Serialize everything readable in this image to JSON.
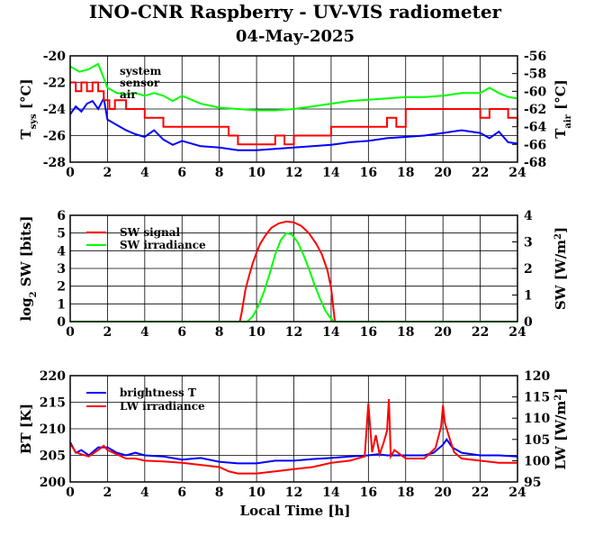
{
  "title": "INO-CNR Raspberry - UV-VIS radiometer",
  "subtitle": "04-May-2025",
  "xlabel": "Local Time [h]",
  "chart_data": [
    {
      "type": "line",
      "panel": "temperature",
      "ylabel_left": {
        "main": "T",
        "sub": "sys",
        "unit": " [°C]"
      },
      "ylabel_right": {
        "main": "T",
        "sub": "air",
        "unit": " [°C]"
      },
      "xlim": [
        0,
        24
      ],
      "ylim": [
        -28,
        -20
      ],
      "ylim_right": [
        -68,
        -56
      ],
      "xticks": [
        0,
        2,
        4,
        6,
        8,
        10,
        12,
        14,
        16,
        18,
        20,
        22,
        24
      ],
      "yticks": [
        -28,
        -26,
        -24,
        -22,
        -20
      ],
      "yticks_right": [
        -68,
        -66,
        -64,
        -62,
        -60,
        -58,
        -56
      ],
      "grid": true,
      "legend_position": "top-left",
      "series": [
        {
          "name": "system",
          "color": "#0000ff",
          "axis": "left",
          "x": [
            0,
            0.3,
            0.6,
            0.9,
            1.2,
            1.5,
            1.8,
            2.0,
            2.5,
            3.0,
            3.5,
            4.0,
            4.5,
            5.0,
            5.5,
            6.0,
            7.0,
            8.0,
            9.0,
            10.0,
            11.0,
            12.0,
            13.0,
            14.0,
            15.0,
            16.0,
            17.0,
            18.0,
            19.0,
            20.0,
            21.0,
            22.0,
            22.5,
            23.0,
            23.5,
            24.0
          ],
          "y": [
            -24.4,
            -23.8,
            -24.2,
            -23.6,
            -23.4,
            -24.0,
            -23.2,
            -24.8,
            -25.2,
            -25.6,
            -25.9,
            -26.1,
            -25.6,
            -26.3,
            -26.7,
            -26.4,
            -26.8,
            -26.9,
            -27.1,
            -27.1,
            -27.0,
            -26.9,
            -26.8,
            -26.7,
            -26.5,
            -26.4,
            -26.2,
            -26.1,
            -26.0,
            -25.8,
            -25.6,
            -25.8,
            -26.2,
            -25.7,
            -26.5,
            -26.6
          ]
        },
        {
          "name": "sensor",
          "color": "#00ff00",
          "axis": "left",
          "x": [
            0,
            0.5,
            1.0,
            1.5,
            2.0,
            2.5,
            3.0,
            3.5,
            4.0,
            4.5,
            5.0,
            5.5,
            6.0,
            7.0,
            8.0,
            9.0,
            10.0,
            11.0,
            12.0,
            13.0,
            14.0,
            15.0,
            16.0,
            17.0,
            18.0,
            19.0,
            20.0,
            21.0,
            22.0,
            22.5,
            23.0,
            23.5,
            24.0
          ],
          "y": [
            -20.8,
            -21.2,
            -21.0,
            -20.6,
            -22.4,
            -22.8,
            -22.9,
            -22.8,
            -23.0,
            -22.8,
            -23.0,
            -23.4,
            -23.0,
            -23.6,
            -23.9,
            -24.0,
            -24.1,
            -24.1,
            -24.0,
            -23.8,
            -23.6,
            -23.4,
            -23.3,
            -23.2,
            -23.1,
            -23.1,
            -23.0,
            -22.8,
            -22.8,
            -22.4,
            -22.8,
            -23.1,
            -23.2
          ]
        },
        {
          "name": "air",
          "color": "#ff0000",
          "axis": "right",
          "step": 1,
          "x": [
            0,
            0.3,
            0.6,
            0.9,
            1.2,
            1.5,
            1.8,
            2.1,
            2.4,
            3.0,
            3.5,
            4.0,
            4.5,
            5.0,
            5.5,
            6.0,
            7.0,
            8.0,
            8.5,
            9.0,
            10.0,
            11.0,
            11.5,
            12.0,
            13.0,
            14.0,
            15.0,
            16.0,
            17.0,
            17.5,
            18.0,
            19.0,
            20.0,
            21.0,
            22.0,
            22.5,
            23.0,
            23.5,
            24.0
          ],
          "y": [
            -59,
            -60,
            -59,
            -60,
            -59,
            -60,
            -61,
            -62,
            -61,
            -62,
            -62,
            -63,
            -63,
            -64,
            -64,
            -64,
            -64,
            -64,
            -65,
            -66,
            -66,
            -65,
            -66,
            -65,
            -65,
            -64,
            -64,
            -64,
            -63,
            -64,
            -62,
            -62,
            -62,
            -62,
            -63,
            -62,
            -62,
            -63,
            -64
          ]
        }
      ]
    },
    {
      "type": "line",
      "panel": "shortwave",
      "ylabel_left": {
        "main": "log",
        "sub": "2",
        "unit": " SW [bits]"
      },
      "ylabel_right": {
        "main": "SW [W/m",
        "sup": "2",
        "unit": "]"
      },
      "xlim": [
        0,
        24
      ],
      "ylim": [
        0,
        6
      ],
      "ylim_right": [
        0,
        4
      ],
      "xticks": [
        0,
        2,
        4,
        6,
        8,
        10,
        12,
        14,
        16,
        18,
        20,
        22,
        24
      ],
      "yticks": [
        0,
        1,
        2,
        3,
        4,
        5,
        6
      ],
      "yticks_right": [
        0,
        1,
        2,
        3,
        4
      ],
      "grid": true,
      "legend_position": "top-left",
      "series": [
        {
          "name": "SW signal",
          "color": "#ff0000",
          "axis": "left",
          "x": [
            0,
            9.1,
            9.2,
            9.4,
            9.6,
            9.8,
            10.0,
            10.2,
            10.5,
            10.8,
            11.2,
            11.6,
            12.0,
            12.4,
            12.8,
            13.2,
            13.5,
            13.8,
            14.0,
            14.15,
            14.2,
            24
          ],
          "y": [
            0,
            0,
            0.5,
            1.8,
            2.6,
            3.3,
            3.9,
            4.4,
            4.9,
            5.3,
            5.55,
            5.65,
            5.6,
            5.4,
            5.0,
            4.4,
            3.8,
            2.9,
            1.9,
            0.5,
            0,
            0
          ]
        },
        {
          "name": "SW irradiance",
          "color": "#00ff00",
          "axis": "left",
          "x": [
            0,
            9.5,
            9.8,
            10.1,
            10.4,
            10.7,
            11.0,
            11.3,
            11.6,
            11.9,
            12.2,
            12.5,
            12.8,
            13.1,
            13.4,
            13.7,
            14.0,
            14.2,
            24
          ],
          "y": [
            0,
            0,
            0.3,
            0.9,
            1.7,
            2.7,
            3.8,
            4.6,
            5.0,
            4.9,
            4.5,
            3.8,
            3.0,
            2.1,
            1.3,
            0.6,
            0.15,
            0,
            0
          ]
        }
      ]
    },
    {
      "type": "line",
      "panel": "longwave",
      "ylabel_left": {
        "main": "BT [K]"
      },
      "ylabel_right": {
        "main": "LW [W/m",
        "sup": "2",
        "unit": "]"
      },
      "xlim": [
        0,
        24
      ],
      "ylim": [
        200,
        220
      ],
      "ylim_right": [
        95,
        120
      ],
      "xticks": [
        0,
        2,
        4,
        6,
        8,
        10,
        12,
        14,
        16,
        18,
        20,
        22,
        24
      ],
      "yticks": [
        200,
        205,
        210,
        215,
        220
      ],
      "yticks_right": [
        95,
        100,
        105,
        110,
        115,
        120
      ],
      "grid": true,
      "legend_position": "top-left",
      "series": [
        {
          "name": "brightness T",
          "color": "#0000ff",
          "axis": "left",
          "x": [
            0,
            0.3,
            0.6,
            1.0,
            1.5,
            2.0,
            2.5,
            3.0,
            3.5,
            4.0,
            5.0,
            6.0,
            7.0,
            8.0,
            9.0,
            10.0,
            11.0,
            12.0,
            13.0,
            14.0,
            15.0,
            16.0,
            16.5,
            17.0,
            18.0,
            19.0,
            19.5,
            20.0,
            20.2,
            20.5,
            21.0,
            22.0,
            23.0,
            24.0
          ],
          "y": [
            207.5,
            205.5,
            206.0,
            205.0,
            206.5,
            206.5,
            205.5,
            205.0,
            205.5,
            205.0,
            204.8,
            204.2,
            204.5,
            203.8,
            203.5,
            203.5,
            204.0,
            204.0,
            204.3,
            204.5,
            204.8,
            205.0,
            205.2,
            205.0,
            205.0,
            205.0,
            205.5,
            207.0,
            208.0,
            206.5,
            205.5,
            205.0,
            205.0,
            204.8
          ]
        },
        {
          "name": "LW irradiance",
          "color": "#ff0000",
          "axis": "right",
          "x": [
            0,
            0.3,
            0.6,
            1.0,
            1.5,
            1.8,
            2.0,
            2.5,
            3.0,
            3.5,
            4.0,
            5.0,
            6.0,
            7.0,
            8.0,
            8.5,
            9.0,
            10.0,
            11.0,
            12.0,
            13.0,
            13.5,
            14.0,
            15.0,
            15.8,
            16.0,
            16.2,
            16.4,
            16.6,
            16.8,
            17.0,
            17.1,
            17.2,
            17.4,
            18.0,
            19.0,
            19.6,
            19.9,
            20.0,
            20.1,
            20.3,
            20.6,
            21.0,
            22.0,
            23.0,
            24.0
          ],
          "y": [
            104.0,
            102.0,
            101.5,
            101.0,
            102.5,
            103.5,
            102.5,
            101.5,
            100.5,
            100.5,
            100.0,
            99.8,
            99.5,
            99.0,
            98.5,
            97.5,
            97.0,
            97.0,
            97.5,
            98.0,
            98.5,
            99.0,
            99.5,
            100.0,
            101.0,
            113.5,
            102.0,
            106.0,
            101.5,
            104.0,
            107.0,
            114.5,
            101.0,
            102.5,
            100.5,
            100.5,
            103.0,
            108.0,
            113.0,
            109.0,
            106.0,
            102.0,
            100.5,
            100.0,
            99.5,
            99.5
          ]
        }
      ]
    }
  ]
}
